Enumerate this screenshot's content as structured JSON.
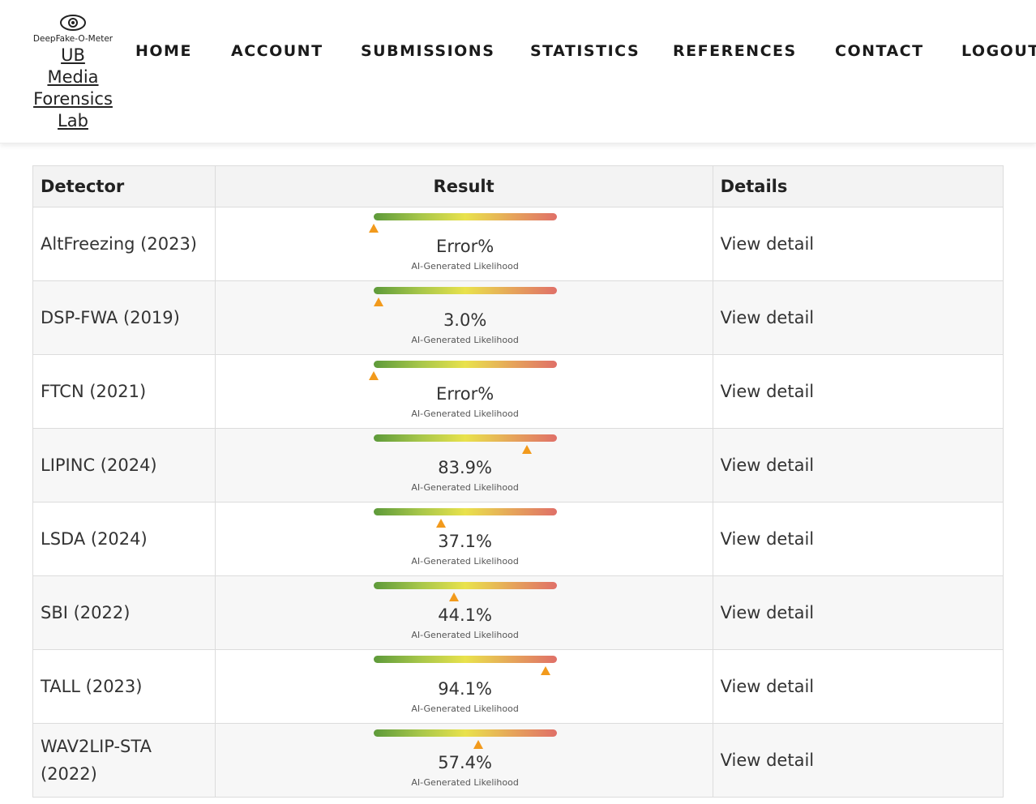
{
  "logo": {
    "icon": "eye-icon",
    "tagline": "DeepFake-O-Meter",
    "link_lines": [
      "UB",
      "Media",
      "Forensics",
      "Lab"
    ]
  },
  "nav": {
    "items": [
      {
        "label": "HOME"
      },
      {
        "label": "ACCOUNT"
      },
      {
        "label": "SUBMISSIONS"
      },
      {
        "label": "STATISTICS"
      },
      {
        "label": "REFERENCES"
      },
      {
        "label": "CONTACT"
      },
      {
        "label": "LOGOUT"
      }
    ]
  },
  "table": {
    "headers": [
      "Detector",
      "Result",
      "Details"
    ],
    "result_caption": "AI-Generated Likelihood",
    "details_label": "View detail",
    "rows": [
      {
        "detector": "AltFreezing (2023)",
        "value": "Error%",
        "level": 0.0
      },
      {
        "detector": "DSP-FWA (2019)",
        "value": "3.0%",
        "level": 0.03
      },
      {
        "detector": "FTCN (2021)",
        "value": "Error%",
        "level": 0.0
      },
      {
        "detector": "LIPINC (2024)",
        "value": "83.9%",
        "level": 0.839
      },
      {
        "detector": "LSDA (2024)",
        "value": "37.1%",
        "level": 0.371
      },
      {
        "detector": "SBI (2022)",
        "value": "44.1%",
        "level": 0.441
      },
      {
        "detector": "TALL (2023)",
        "value": "94.1%",
        "level": 0.941
      },
      {
        "detector": "WAV2LIP-STA (2022)",
        "value": "57.4%",
        "level": 0.574
      }
    ]
  },
  "colors": {
    "marker": "#f29a1c",
    "gauge_start": "#5d9a3a",
    "gauge_mid": "#e9e24c",
    "gauge_end": "#e07068"
  }
}
